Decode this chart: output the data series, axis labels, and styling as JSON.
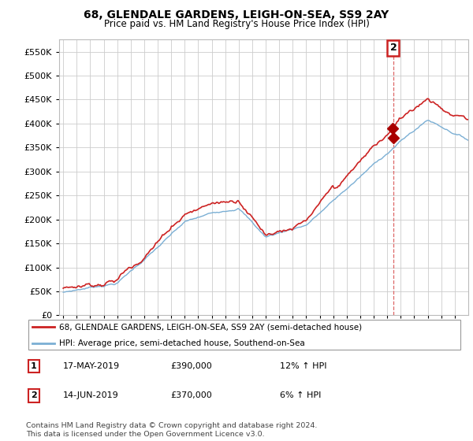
{
  "title": "68, GLENDALE GARDENS, LEIGH-ON-SEA, SS9 2AY",
  "subtitle": "Price paid vs. HM Land Registry's House Price Index (HPI)",
  "legend_line1": "68, GLENDALE GARDENS, LEIGH-ON-SEA, SS9 2AY (semi-detached house)",
  "legend_line2": "HPI: Average price, semi-detached house, Southend-on-Sea",
  "footnote": "Contains HM Land Registry data © Crown copyright and database right 2024.\nThis data is licensed under the Open Government Licence v3.0.",
  "table": [
    {
      "num": "1",
      "date": "17-MAY-2019",
      "price": "£390,000",
      "change": "12% ↑ HPI"
    },
    {
      "num": "2",
      "date": "14-JUN-2019",
      "price": "£370,000",
      "change": "6% ↑ HPI"
    }
  ],
  "transaction1_year": 2019.37,
  "transaction1_price": 390000,
  "transaction2_year": 2019.45,
  "transaction2_price": 370000,
  "hpi_color": "#7bafd4",
  "price_color": "#cc2222",
  "dashed_color": "#dd6666",
  "marker_color": "#aa0000",
  "ylim": [
    0,
    575000
  ],
  "yticks": [
    0,
    50000,
    100000,
    150000,
    200000,
    250000,
    300000,
    350000,
    400000,
    450000,
    500000,
    550000
  ],
  "xlim_left": 1994.7,
  "xlim_right": 2025.0,
  "background_color": "#ffffff",
  "grid_color": "#cccccc"
}
